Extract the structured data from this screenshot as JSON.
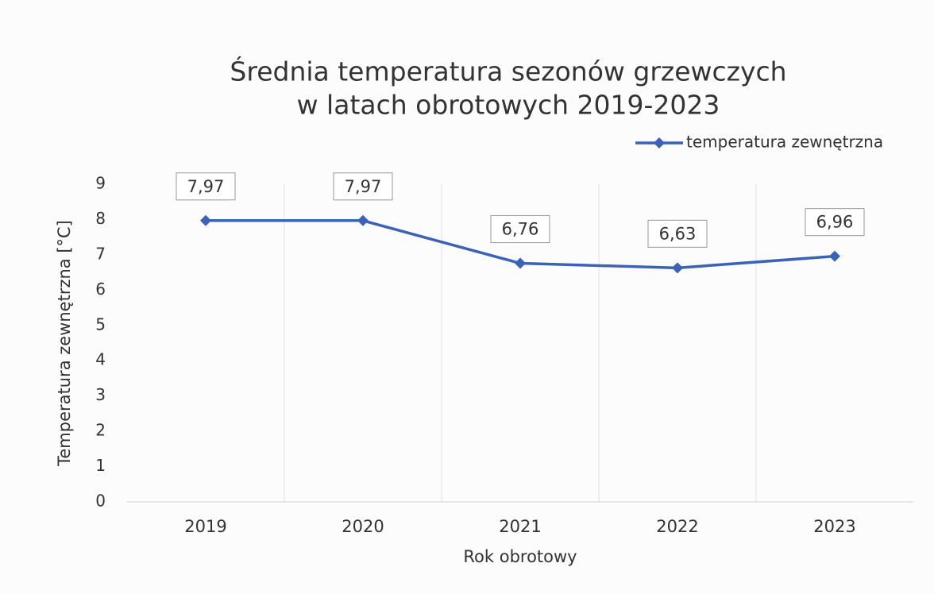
{
  "chart_data": {
    "type": "line",
    "title": [
      "Średnia temperatura sezonów grzewczych",
      "w latach obrotowych 2019-2023"
    ],
    "x_label": "Rok obrotowy",
    "y_label": "Temperatura zewnętrzna [°C]",
    "categories": [
      "2019",
      "2020",
      "2021",
      "2022",
      "2023"
    ],
    "series": [
      {
        "name": "temperatura zewnętrzna",
        "color": "#3a62b8",
        "values": [
          7.97,
          7.97,
          6.76,
          6.63,
          6.96
        ],
        "value_labels": [
          "7,97",
          "7,97",
          "6,76",
          "6,63",
          "6,96"
        ]
      }
    ],
    "ylim": [
      0,
      9
    ],
    "yticks": [
      0,
      1,
      2,
      3,
      4,
      5,
      6,
      7,
      8,
      9
    ],
    "grid": true,
    "legend": "top-right"
  }
}
